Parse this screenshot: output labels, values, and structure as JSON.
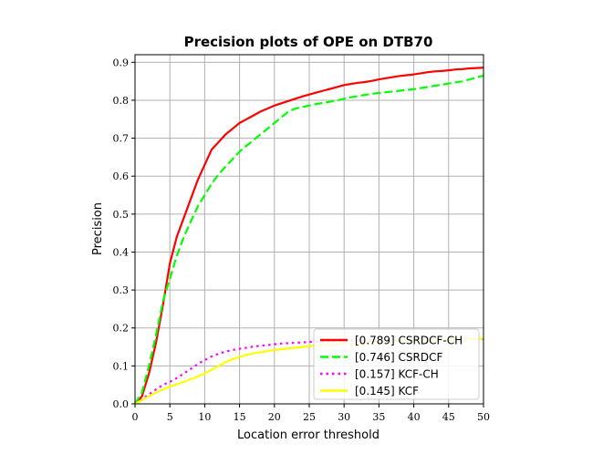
{
  "chart_data": {
    "type": "line",
    "title": "Precision plots of OPE on DTB70",
    "xlabel": "Location error threshold",
    "ylabel": "Precision",
    "xlim": [
      0,
      50
    ],
    "ylim": [
      0,
      0.92
    ],
    "xticks": [
      "0",
      "5",
      "10",
      "15",
      "20",
      "25",
      "30",
      "35",
      "40",
      "45",
      "50"
    ],
    "yticks": [
      "0.0",
      "0.1",
      "0.2",
      "0.3",
      "0.4",
      "0.5",
      "0.6",
      "0.7",
      "0.8",
      "0.9"
    ],
    "grid": true,
    "legend_position": "bottom-right",
    "series": [
      {
        "name": "[0.789] CSRDCF-CH",
        "color": "#ff0000",
        "style": "solid",
        "x": [
          0,
          1,
          2,
          3,
          4,
          5,
          6,
          7,
          8,
          9,
          10,
          11,
          12,
          13,
          14,
          15,
          16,
          17,
          18,
          19,
          20,
          21,
          22,
          23,
          24,
          25,
          26,
          27,
          28,
          29,
          30,
          31,
          32,
          33,
          34,
          35,
          36,
          37,
          38,
          39,
          40,
          41,
          42,
          43,
          44,
          45,
          46,
          47,
          48,
          49,
          50
        ],
        "y": [
          0.0,
          0.02,
          0.08,
          0.16,
          0.26,
          0.37,
          0.44,
          0.49,
          0.54,
          0.59,
          0.63,
          0.67,
          0.69,
          0.71,
          0.725,
          0.74,
          0.75,
          0.76,
          0.77,
          0.778,
          0.786,
          0.792,
          0.798,
          0.804,
          0.81,
          0.815,
          0.82,
          0.825,
          0.83,
          0.835,
          0.84,
          0.843,
          0.846,
          0.848,
          0.851,
          0.855,
          0.858,
          0.861,
          0.864,
          0.866,
          0.868,
          0.871,
          0.874,
          0.876,
          0.877,
          0.879,
          0.881,
          0.882,
          0.884,
          0.885,
          0.886
        ]
      },
      {
        "name": "[0.746] CSRDCF",
        "color": "#00ff00",
        "style": "dashed",
        "x": [
          0,
          1,
          2,
          3,
          4,
          5,
          6,
          7,
          8,
          9,
          10,
          11,
          12,
          13,
          14,
          15,
          16,
          17,
          18,
          19,
          20,
          21,
          22,
          23,
          24,
          25,
          26,
          27,
          28,
          29,
          30,
          31,
          32,
          33,
          34,
          35,
          36,
          37,
          38,
          39,
          40,
          41,
          42,
          43,
          44,
          45,
          46,
          47,
          48,
          49,
          50
        ],
        "y": [
          0.0,
          0.03,
          0.1,
          0.18,
          0.27,
          0.33,
          0.39,
          0.44,
          0.48,
          0.52,
          0.55,
          0.58,
          0.605,
          0.625,
          0.645,
          0.665,
          0.68,
          0.695,
          0.71,
          0.725,
          0.74,
          0.755,
          0.77,
          0.778,
          0.782,
          0.786,
          0.79,
          0.793,
          0.796,
          0.8,
          0.804,
          0.808,
          0.811,
          0.814,
          0.817,
          0.819,
          0.821,
          0.823,
          0.825,
          0.827,
          0.829,
          0.832,
          0.835,
          0.838,
          0.841,
          0.844,
          0.847,
          0.85,
          0.855,
          0.86,
          0.865
        ]
      },
      {
        "name": "[0.157] KCF-CH",
        "color": "#ff00ff",
        "style": "dotted",
        "x": [
          0,
          1,
          2,
          3,
          4,
          5,
          6,
          7,
          8,
          9,
          10,
          11,
          12,
          13,
          14,
          15,
          16,
          17,
          18,
          19,
          20,
          21,
          22,
          23,
          24,
          25,
          26,
          27,
          28,
          29,
          30,
          32,
          34,
          36,
          38,
          40,
          42,
          44,
          46,
          48,
          50
        ],
        "y": [
          0.0,
          0.012,
          0.025,
          0.038,
          0.05,
          0.058,
          0.068,
          0.08,
          0.092,
          0.105,
          0.115,
          0.125,
          0.132,
          0.138,
          0.142,
          0.145,
          0.148,
          0.151,
          0.153,
          0.155,
          0.157,
          0.159,
          0.16,
          0.161,
          0.162,
          0.163,
          0.164,
          0.165,
          0.165,
          0.166,
          0.166,
          0.167,
          0.167,
          0.168,
          0.168,
          0.169,
          0.169,
          0.17,
          0.17,
          0.171,
          0.171
        ]
      },
      {
        "name": "[0.145] KCF",
        "color": "#ffff00",
        "style": "solid",
        "x": [
          0,
          1,
          2,
          3,
          4,
          5,
          6,
          7,
          8,
          9,
          10,
          11,
          12,
          13,
          14,
          15,
          16,
          17,
          18,
          19,
          20,
          21,
          22,
          23,
          24,
          25,
          26,
          27,
          28,
          29,
          30,
          32,
          34,
          36,
          38,
          40,
          42,
          44,
          46,
          48,
          50
        ],
        "y": [
          0.0,
          0.01,
          0.02,
          0.03,
          0.038,
          0.045,
          0.052,
          0.058,
          0.065,
          0.072,
          0.08,
          0.09,
          0.1,
          0.11,
          0.118,
          0.124,
          0.129,
          0.133,
          0.136,
          0.139,
          0.142,
          0.144,
          0.146,
          0.148,
          0.15,
          0.152,
          0.154,
          0.155,
          0.156,
          0.157,
          0.158,
          0.16,
          0.162,
          0.164,
          0.165,
          0.167,
          0.168,
          0.169,
          0.17,
          0.171,
          0.172
        ]
      }
    ]
  }
}
